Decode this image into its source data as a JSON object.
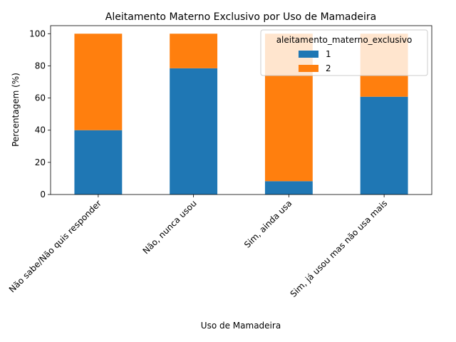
{
  "chart_data": {
    "type": "bar",
    "stacked": true,
    "title": "Aleitamento Materno Exclusivo por Uso de Mamadeira",
    "xlabel": "Uso de Mamadeira",
    "ylabel": "Percentagem (%)",
    "ylim": [
      0,
      105
    ],
    "yticks": [
      "0",
      "20",
      "40",
      "60",
      "80",
      "100"
    ],
    "categories": [
      "Não sabe/Não quis responder",
      "Não, nunca usou",
      "Sim, ainda usa",
      "Sim, já usou mas não usa mais"
    ],
    "series": [
      {
        "name": "1",
        "color": "#1f77b4",
        "values": [
          40,
          78.5,
          8.3,
          60.8
        ]
      },
      {
        "name": "2",
        "color": "#ff7f0e",
        "values": [
          60,
          21.5,
          91.7,
          39.2
        ]
      }
    ],
    "legend": {
      "title": "aleitamento_materno_exclusivo",
      "placement": "top-right"
    },
    "grid": false
  }
}
